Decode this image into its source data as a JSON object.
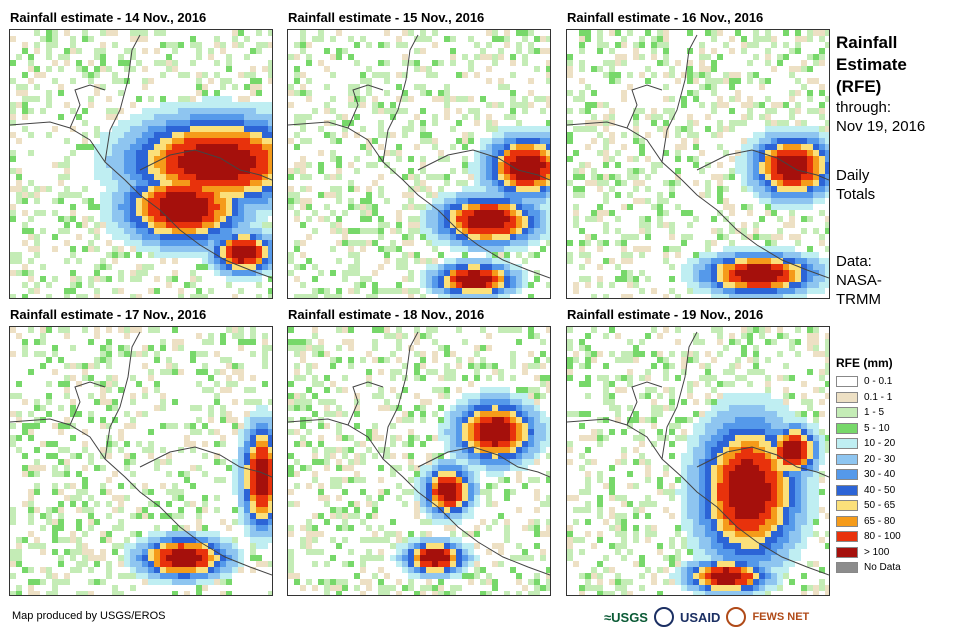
{
  "panels": [
    {
      "title": "Rainfall estimate - 14 Nov., 2016",
      "hotspots": [
        [
          0.78,
          0.48,
          0.45,
          0.22
        ],
        [
          0.65,
          0.65,
          0.3,
          0.18
        ],
        [
          0.88,
          0.82,
          0.15,
          0.1
        ]
      ]
    },
    {
      "title": "Rainfall estimate - 15 Nov., 2016",
      "hotspots": [
        [
          0.9,
          0.5,
          0.2,
          0.15
        ],
        [
          0.75,
          0.7,
          0.25,
          0.12
        ],
        [
          0.7,
          0.92,
          0.2,
          0.08
        ]
      ]
    },
    {
      "title": "Rainfall estimate - 16 Nov., 2016",
      "hotspots": [
        [
          0.72,
          0.9,
          0.28,
          0.1
        ],
        [
          0.85,
          0.5,
          0.2,
          0.15
        ]
      ]
    },
    {
      "title": "Rainfall estimate - 17 Nov., 2016",
      "hotspots": [
        [
          0.65,
          0.85,
          0.22,
          0.1
        ],
        [
          0.95,
          0.55,
          0.1,
          0.25
        ]
      ]
    },
    {
      "title": "Rainfall estimate - 18 Nov., 2016",
      "hotspots": [
        [
          0.78,
          0.38,
          0.2,
          0.15
        ],
        [
          0.55,
          0.85,
          0.15,
          0.08
        ],
        [
          0.6,
          0.6,
          0.12,
          0.12
        ]
      ]
    },
    {
      "title": "Rainfall estimate - 19 Nov., 2016",
      "hotspots": [
        [
          0.68,
          0.6,
          0.25,
          0.35
        ],
        [
          0.85,
          0.45,
          0.12,
          0.12
        ],
        [
          0.6,
          0.92,
          0.2,
          0.08
        ]
      ]
    }
  ],
  "sidebar": {
    "title_lines": [
      "Rainfall",
      "Estimate",
      "(RFE)"
    ],
    "through_label": "through:",
    "through_date": "Nov 19, 2016",
    "daily_totals": "Daily Totals",
    "data_label": "Data:",
    "data_source": "NASA- TRMM"
  },
  "legend": {
    "title": "RFE (mm)",
    "items": [
      {
        "label": "0 - 0.1",
        "color": "#ffffff"
      },
      {
        "label": "0.1 - 1",
        "color": "#ede0c4"
      },
      {
        "label": "1 - 5",
        "color": "#c4ecb6"
      },
      {
        "label": "5 - 10",
        "color": "#77d86a"
      },
      {
        "label": "10 - 20",
        "color": "#bfeef2"
      },
      {
        "label": "20 - 30",
        "color": "#8ec5f0"
      },
      {
        "label": "30 - 40",
        "color": "#5599ea"
      },
      {
        "label": "40 - 50",
        "color": "#2c64d6"
      },
      {
        "label": "50 - 65",
        "color": "#fbe07a"
      },
      {
        "label": "65 - 80",
        "color": "#f59b1a"
      },
      {
        "label": "80 - 100",
        "color": "#e8320c"
      },
      {
        "label": "> 100",
        "color": "#a5100c"
      },
      {
        "label": "No Data",
        "color": "#8c8c8c"
      }
    ]
  },
  "credit": "Map produced by USGS/EROS",
  "logos": {
    "usgs": "≈USGS",
    "usaid": "USAID",
    "fews": "FEWS NET"
  }
}
